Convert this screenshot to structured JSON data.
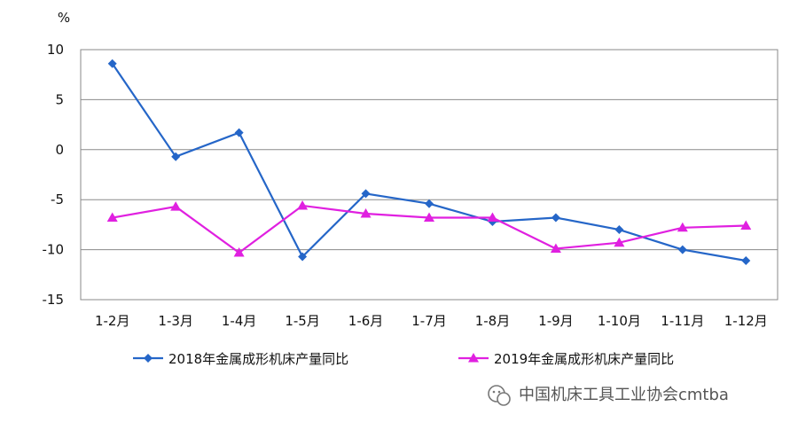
{
  "chart_data": {
    "type": "line",
    "ylabel": "%",
    "ylim": [
      -15,
      10
    ],
    "yticks": [
      10,
      5,
      0,
      -5,
      -10,
      -15
    ],
    "categories": [
      "1-2月",
      "1-3月",
      "1-4月",
      "1-5月",
      "1-6月",
      "1-7月",
      "1-8月",
      "1-9月",
      "1-10月",
      "1-11月",
      "1-12月"
    ],
    "grid": true,
    "legend_position": "bottom",
    "series": [
      {
        "name": "2018年金属成形机床产量同比",
        "color": "#2566C8",
        "marker": "diamond",
        "values": [
          8.6,
          -0.7,
          1.7,
          -10.7,
          -4.4,
          -5.4,
          -7.2,
          -6.8,
          -8.0,
          -10.0,
          -11.1
        ]
      },
      {
        "name": "2019年金属成形机床产量同比",
        "color": "#E020E0",
        "marker": "triangle",
        "values": [
          -6.8,
          -5.7,
          -10.3,
          -5.6,
          -6.4,
          -6.8,
          -6.8,
          -9.9,
          -9.3,
          -7.8,
          -7.6
        ]
      }
    ]
  },
  "watermark": {
    "icon": "wechat-icon",
    "text": "中国机床工具工业协会cmtba"
  }
}
